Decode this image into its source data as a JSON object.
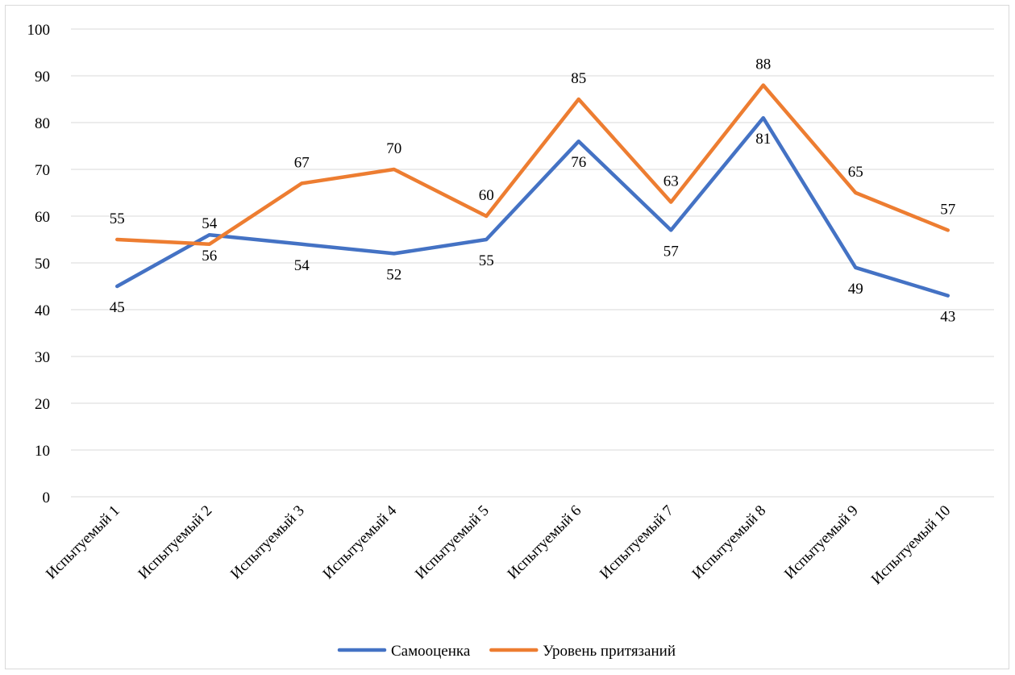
{
  "chart_data": {
    "type": "line",
    "categories": [
      "Испытуемый 1",
      "Испытуемый 2",
      "Испытуемый 3",
      "Испытуемый 4",
      "Испытуемый 5",
      "Испытуемый 6",
      "Испытуемый 7",
      "Испытуемый 8",
      "Испытуемый 9",
      "Испытуемый 10"
    ],
    "series": [
      {
        "name": "Самооценка",
        "color": "#4472C4",
        "values": [
          45,
          56,
          54,
          52,
          55,
          76,
          57,
          81,
          49,
          43
        ],
        "labels": [
          "45",
          "56",
          "54",
          "52",
          "55",
          "76",
          "57",
          "81",
          "49",
          "43"
        ],
        "label_side": [
          "below",
          "below",
          "below",
          "below",
          "below",
          "below",
          "below",
          "below",
          "below",
          "below"
        ]
      },
      {
        "name": "Уровень притязаний",
        "color": "#ED7D31",
        "values": [
          55,
          54,
          67,
          70,
          60,
          85,
          63,
          88,
          65,
          57
        ],
        "labels": [
          "55",
          "54",
          "67",
          "70",
          "60",
          "85",
          "63",
          "88",
          "65",
          "57"
        ],
        "label_side": [
          "above",
          "above",
          "above",
          "above",
          "above",
          "above",
          "above",
          "above",
          "above",
          "above"
        ]
      }
    ],
    "ylim": [
      0,
      100
    ],
    "yticks": [
      "0",
      "10",
      "20",
      "30",
      "40",
      "50",
      "60",
      "70",
      "80",
      "90",
      "100"
    ],
    "grid": true,
    "legend": "bottom",
    "title": "",
    "xlabel": "",
    "ylabel": ""
  }
}
